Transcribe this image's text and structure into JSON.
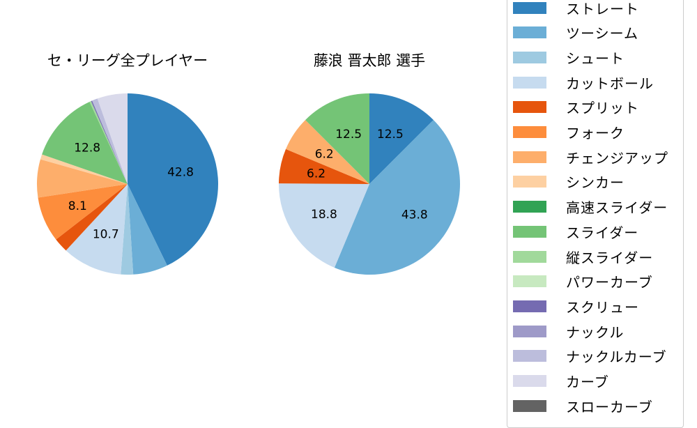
{
  "chart_data": [
    {
      "type": "pie",
      "title": "セ・リーグ全プレイヤー",
      "categories": [
        "ストレート",
        "ツーシーム",
        "シュート",
        "カットボール",
        "スプリット",
        "フォーク",
        "チェンジアップ",
        "シンカー",
        "スライダー",
        "縦スライダー",
        "スクリュー",
        "ナックルカーブ",
        "カーブ"
      ],
      "values": [
        42.8,
        6.2,
        2.2,
        10.7,
        2.6,
        8.1,
        6.8,
        0.9,
        12.8,
        0.3,
        0.2,
        1.0,
        5.4
      ],
      "labels_shown": [
        "42.8",
        "10.7",
        "8.1",
        "12.8"
      ],
      "colors": [
        "#3182bd",
        "#6baed6",
        "#9ecae1",
        "#c6dbef",
        "#e6550d",
        "#fd8d3c",
        "#fdae6b",
        "#fdd0a2",
        "#74c476",
        "#a1d99b",
        "#756bb1",
        "#bcbddc",
        "#dadaeb"
      ]
    },
    {
      "type": "pie",
      "title": "藤浪 晋太郎  選手",
      "categories": [
        "ストレート",
        "ツーシーム",
        "カットボール",
        "スプリット",
        "チェンジアップ",
        "スライダー"
      ],
      "values": [
        12.5,
        43.8,
        18.8,
        6.2,
        6.2,
        12.5
      ],
      "labels_shown": [
        "12.5",
        "43.8",
        "18.8",
        "6.2",
        "6.2",
        "12.5"
      ],
      "colors": [
        "#3182bd",
        "#6baed6",
        "#c6dbef",
        "#e6550d",
        "#fdae6b",
        "#74c476"
      ]
    }
  ],
  "titles": {
    "left": "セ・リーグ全プレイヤー",
    "right": "藤浪 晋太郎  選手"
  },
  "legend": [
    {
      "label": "ストレート",
      "color": "#3182bd"
    },
    {
      "label": "ツーシーム",
      "color": "#6baed6"
    },
    {
      "label": "シュート",
      "color": "#9ecae1"
    },
    {
      "label": "カットボール",
      "color": "#c6dbef"
    },
    {
      "label": "スプリット",
      "color": "#e6550d"
    },
    {
      "label": "フォーク",
      "color": "#fd8d3c"
    },
    {
      "label": "チェンジアップ",
      "color": "#fdae6b"
    },
    {
      "label": "シンカー",
      "color": "#fdd0a2"
    },
    {
      "label": "高速スライダー",
      "color": "#31a354"
    },
    {
      "label": "スライダー",
      "color": "#74c476"
    },
    {
      "label": "縦スライダー",
      "color": "#a1d99b"
    },
    {
      "label": "パワーカーブ",
      "color": "#c7e9c0"
    },
    {
      "label": "スクリュー",
      "color": "#756bb1"
    },
    {
      "label": "ナックル",
      "color": "#9e9ac8"
    },
    {
      "label": "ナックルカーブ",
      "color": "#bcbddc"
    },
    {
      "label": "カーブ",
      "color": "#dadaeb"
    },
    {
      "label": "スローカーブ",
      "color": "#636363"
    }
  ]
}
